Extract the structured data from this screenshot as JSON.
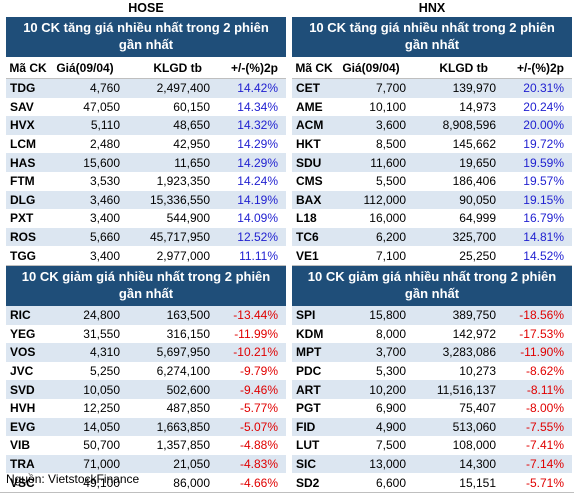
{
  "hose": {
    "title": "HOSE",
    "gainers": {
      "heading": "10 CK tăng giá nhiều nhất trong 2 phiên gần nhất",
      "columns": [
        "Mã CK",
        "Giá(09/04)",
        "KLGD tb",
        "+/-(%)2p"
      ],
      "rows": [
        {
          "code": "TDG",
          "price": "4,760",
          "vol": "2,497,400",
          "chg": "14.42%"
        },
        {
          "code": "SAV",
          "price": "47,050",
          "vol": "60,150",
          "chg": "14.34%"
        },
        {
          "code": "HVX",
          "price": "5,110",
          "vol": "48,650",
          "chg": "14.32%"
        },
        {
          "code": "LCM",
          "price": "2,480",
          "vol": "42,950",
          "chg": "14.29%"
        },
        {
          "code": "HAS",
          "price": "15,600",
          "vol": "11,650",
          "chg": "14.29%"
        },
        {
          "code": "FTM",
          "price": "3,530",
          "vol": "1,923,350",
          "chg": "14.24%"
        },
        {
          "code": "DLG",
          "price": "3,460",
          "vol": "15,336,550",
          "chg": "14.19%"
        },
        {
          "code": "PXT",
          "price": "3,400",
          "vol": "544,900",
          "chg": "14.09%"
        },
        {
          "code": "ROS",
          "price": "5,660",
          "vol": "45,717,950",
          "chg": "12.52%"
        },
        {
          "code": "TGG",
          "price": "3,400",
          "vol": "2,977,000",
          "chg": "11.11%"
        }
      ]
    },
    "losers": {
      "heading": "10 CK giảm giá nhiều nhất trong 2 phiên gần nhất",
      "rows": [
        {
          "code": "RIC",
          "price": "24,800",
          "vol": "163,500",
          "chg": "-13.44%"
        },
        {
          "code": "YEG",
          "price": "31,550",
          "vol": "316,150",
          "chg": "-11.99%"
        },
        {
          "code": "VOS",
          "price": "4,310",
          "vol": "5,697,950",
          "chg": "-10.21%"
        },
        {
          "code": "JVC",
          "price": "5,250",
          "vol": "6,274,100",
          "chg": "-9.79%"
        },
        {
          "code": "SVD",
          "price": "10,050",
          "vol": "502,600",
          "chg": "-9.46%"
        },
        {
          "code": "HVH",
          "price": "12,250",
          "vol": "487,850",
          "chg": "-5.77%"
        },
        {
          "code": "EVG",
          "price": "14,050",
          "vol": "1,663,850",
          "chg": "-5.07%"
        },
        {
          "code": "VIB",
          "price": "50,700",
          "vol": "1,357,850",
          "chg": "-4.88%"
        },
        {
          "code": "TRA",
          "price": "71,000",
          "vol": "21,050",
          "chg": "-4.83%"
        },
        {
          "code": "VSC",
          "price": "49,100",
          "vol": "86,000",
          "chg": "-4.66%"
        }
      ]
    }
  },
  "hnx": {
    "title": "HNX",
    "gainers": {
      "heading": "10 CK tăng giá nhiều nhất trong 2 phiên gần nhất",
      "columns": [
        "Mã CK",
        "Giá(09/04)",
        "KLGD tb",
        "+/-(%)2p"
      ],
      "rows": [
        {
          "code": "CET",
          "price": "7,700",
          "vol": "139,970",
          "chg": "20.31%"
        },
        {
          "code": "AME",
          "price": "10,100",
          "vol": "14,973",
          "chg": "20.24%"
        },
        {
          "code": "ACM",
          "price": "3,600",
          "vol": "8,908,596",
          "chg": "20.00%"
        },
        {
          "code": "HKT",
          "price": "8,500",
          "vol": "145,662",
          "chg": "19.72%"
        },
        {
          "code": "SDU",
          "price": "11,600",
          "vol": "19,650",
          "chg": "19.59%"
        },
        {
          "code": "CMS",
          "price": "5,500",
          "vol": "186,406",
          "chg": "19.57%"
        },
        {
          "code": "BAX",
          "price": "112,000",
          "vol": "90,050",
          "chg": "19.15%"
        },
        {
          "code": "L18",
          "price": "16,000",
          "vol": "64,999",
          "chg": "16.79%"
        },
        {
          "code": "TC6",
          "price": "6,200",
          "vol": "325,700",
          "chg": "14.81%"
        },
        {
          "code": "VE1",
          "price": "7,100",
          "vol": "25,250",
          "chg": "14.52%"
        }
      ]
    },
    "losers": {
      "heading": "10 CK giảm giá nhiều nhất trong 2 phiên gần nhất",
      "rows": [
        {
          "code": "SPI",
          "price": "15,800",
          "vol": "389,750",
          "chg": "-18.56%"
        },
        {
          "code": "KDM",
          "price": "8,000",
          "vol": "142,972",
          "chg": "-17.53%"
        },
        {
          "code": "MPT",
          "price": "3,700",
          "vol": "3,283,086",
          "chg": "-11.90%"
        },
        {
          "code": "PDC",
          "price": "5,300",
          "vol": "10,273",
          "chg": "-8.62%"
        },
        {
          "code": "ART",
          "price": "10,200",
          "vol": "11,516,137",
          "chg": "-8.11%"
        },
        {
          "code": "PGT",
          "price": "6,900",
          "vol": "75,407",
          "chg": "-8.00%"
        },
        {
          "code": "FID",
          "price": "4,900",
          "vol": "513,060",
          "chg": "-7.55%"
        },
        {
          "code": "LUT",
          "price": "7,500",
          "vol": "108,000",
          "chg": "-7.41%"
        },
        {
          "code": "SIC",
          "price": "13,000",
          "vol": "14,300",
          "chg": "-7.14%"
        },
        {
          "code": "SD2",
          "price": "6,600",
          "vol": "15,151",
          "chg": "-5.71%"
        }
      ]
    }
  },
  "source": "Nguồn: VietstockFinance",
  "colors": {
    "header_bg": "#1f4e79",
    "stripe": "#dce6f1",
    "up": "#1f1fd0",
    "down": "#e00000"
  }
}
